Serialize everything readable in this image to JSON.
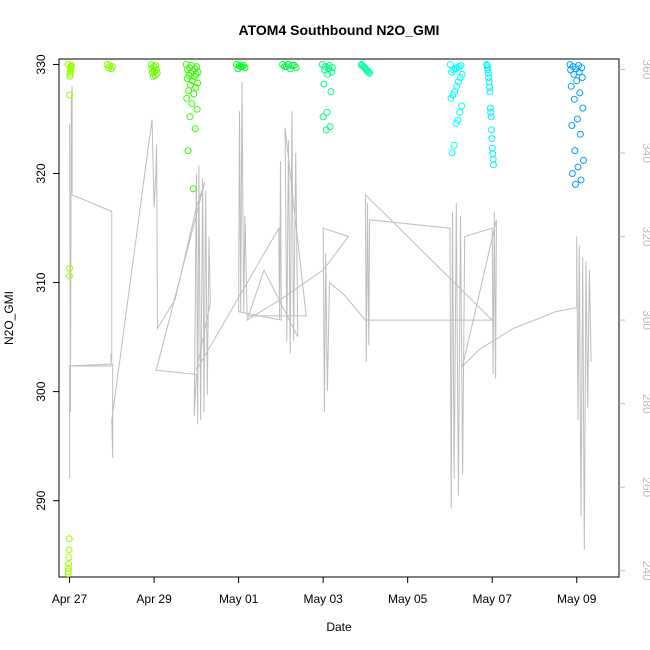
{
  "chart_data": {
    "type": "scatter",
    "title": "ATOM4 Southbound N2O_GMI",
    "xlabel": "Date",
    "ylabel": "N2O_GMI",
    "x_unit": "days since Apr 27",
    "xlim": [
      -0.25,
      13.0
    ],
    "ylim": [
      283.0,
      330.5
    ],
    "y2lim": [
      238.5,
      362.5
    ],
    "x_ticks": [
      {
        "value": 0,
        "label": "Apr 27"
      },
      {
        "value": 2,
        "label": "Apr 29"
      },
      {
        "value": 4,
        "label": "May 01"
      },
      {
        "value": 6,
        "label": "May 03"
      },
      {
        "value": 8,
        "label": "May 05"
      },
      {
        "value": 10,
        "label": "May 07"
      },
      {
        "value": 12,
        "label": "May 09"
      }
    ],
    "y_ticks": [
      290,
      300,
      310,
      320,
      330
    ],
    "y2_ticks": [
      240,
      260,
      280,
      300,
      320,
      340,
      360
    ],
    "grid": false,
    "legend": "none",
    "series": [
      {
        "kind": "points-primary-axis",
        "clusters": [
          {
            "x": 0.0,
            "dx": 0.04,
            "color": "#99ff00",
            "values": [
              330,
              329.9,
              329.8,
              329.7,
              329.6,
              329.5,
              329.3,
              329.1,
              328.9,
              327.2,
              311.3,
              310.6,
              286.5,
              285.5,
              284.8,
              284.2,
              283.8,
              283.5,
              283.3
            ]
          },
          {
            "x": 0.95,
            "dx": 0.06,
            "color": "#80ff00",
            "values": [
              330,
              329.9,
              329.8,
              329.7,
              329.6
            ]
          },
          {
            "x": 2.0,
            "dx": 0.07,
            "color": "#66ff00",
            "values": [
              330,
              329.9,
              329.8,
              329.6,
              329.5,
              329.4,
              329.3,
              329.2,
              329.0,
              328.9
            ]
          },
          {
            "x": 2.9,
            "dx": 0.14,
            "color": "#33ff00",
            "values": [
              330,
              329.9,
              329.8,
              329.7,
              329.6,
              329.5,
              329.4,
              329.3,
              329.2,
              329.1,
              329.0,
              328.9,
              328.7,
              328.5,
              328.3,
              328.1,
              327.9,
              327.6,
              327.3,
              326.9,
              326.4,
              325.9,
              325.2,
              324.1,
              322.1,
              318.6
            ]
          },
          {
            "x": 4.05,
            "dx": 0.1,
            "color": "#00ff1a",
            "values": [
              330,
              329.9,
              329.8,
              329.7,
              329.6,
              329.8,
              329.9
            ]
          },
          {
            "x": 5.2,
            "dx": 0.16,
            "color": "#00ff40",
            "values": [
              330,
              329.9,
              329.8,
              329.7,
              329.6,
              329.8,
              329.9,
              330
            ]
          },
          {
            "x": 6.1,
            "dx": 0.12,
            "color": "#00ff80",
            "values": [
              330,
              329.9,
              329.8,
              329.7,
              329.6,
              329.5,
              329.3,
              329.1,
              328.2,
              327.5,
              325.6,
              325.2,
              324.3,
              324.0
            ]
          },
          {
            "x": 7.0,
            "dx": 0.1,
            "color": "#00ffa0",
            "values": [
              330,
              329.9,
              329.8,
              329.7,
              329.6,
              329.5,
              329.4,
              329.3,
              329.2
            ]
          },
          {
            "x": 9.15,
            "dx": 0.14,
            "color": "#00ffff",
            "values": [
              330,
              329.9,
              329.8,
              329.7,
              329.6,
              329.5,
              329.3,
              329.1,
              328.8,
              328.4,
              328.0,
              327.5,
              327.2,
              326.9,
              326.2,
              325.6,
              324.9,
              324.6,
              322.6,
              321.9
            ]
          },
          {
            "x": 9.95,
            "dx": 0.08,
            "color": "#00f5ff",
            "values": [
              330,
              329.9,
              329.7,
              329.5,
              329.2,
              328.8,
              328.4,
              327.9,
              327.5,
              326.0,
              325.6,
              325.2,
              324.0,
              323.2,
              322.3,
              321.8,
              321.3,
              320.8
            ]
          },
          {
            "x": 12.0,
            "dx": 0.16,
            "color": "#00a0ff",
            "values": [
              330,
              329.9,
              329.8,
              329.7,
              329.6,
              329.5,
              329.3,
              329.1,
              328.8,
              328.5,
              328.0,
              327.4,
              326.8,
              326.0,
              325.0,
              324.4,
              323.6,
              322.1,
              321.2,
              320.6,
              320.0,
              319.4,
              319.0
            ]
          }
        ]
      },
      {
        "kind": "line-secondary-axis",
        "color": "#bebebe",
        "points": [
          [
            0.0,
            347
          ],
          [
            0.02,
            278
          ],
          [
            0.04,
            352
          ],
          [
            0.06,
            356
          ],
          [
            0.06,
            330
          ],
          [
            1.0,
            326
          ],
          [
            1.0,
            290
          ],
          [
            0.98,
            292
          ],
          [
            0.98,
            289
          ],
          [
            0.0,
            289
          ],
          [
            0.0,
            262
          ],
          [
            0.0,
            289
          ],
          [
            1.02,
            289.5
          ],
          [
            1.02,
            267
          ],
          [
            1.0,
            276
          ],
          [
            1.95,
            348
          ],
          [
            2.0,
            327
          ],
          [
            2.04,
            335
          ],
          [
            2.06,
            342
          ],
          [
            2.08,
            298
          ],
          [
            2.5,
            305
          ],
          [
            3.0,
            327
          ],
          [
            3.2,
            333
          ],
          [
            2.05,
            288
          ],
          [
            2.5,
            287.5
          ],
          [
            3.0,
            287
          ],
          [
            2.95,
            277
          ],
          [
            3.0,
            335
          ],
          [
            3.03,
            275
          ],
          [
            3.06,
            337
          ],
          [
            3.1,
            276
          ],
          [
            3.15,
            334
          ],
          [
            3.18,
            278
          ],
          [
            3.22,
            331
          ],
          [
            3.26,
            282
          ],
          [
            3.3,
            320
          ],
          [
            3.33,
            304
          ],
          [
            3.0,
            288
          ],
          [
            4.95,
            322
          ],
          [
            4.97,
            300
          ],
          [
            4.99,
            338
          ],
          [
            5.01,
            300
          ],
          [
            4.0,
            302
          ],
          [
            4.02,
            350
          ],
          [
            4.05,
            302
          ],
          [
            4.08,
            357
          ],
          [
            4.12,
            302
          ],
          [
            4.15,
            325
          ],
          [
            4.2,
            301
          ],
          [
            5.0,
            301
          ],
          [
            5.6,
            301
          ],
          [
            5.1,
            346
          ],
          [
            5.14,
            295
          ],
          [
            5.18,
            343
          ],
          [
            5.22,
            292
          ],
          [
            5.26,
            350
          ],
          [
            5.3,
            295
          ],
          [
            5.35,
            340
          ],
          [
            5.4,
            296
          ],
          [
            4.6,
            312
          ],
          [
            4.2,
            300
          ],
          [
            5.0,
            305
          ],
          [
            6.0,
            312
          ],
          [
            6.6,
            320
          ],
          [
            6.0,
            322
          ],
          [
            6.03,
            278
          ],
          [
            6.06,
            316
          ],
          [
            6.1,
            283
          ],
          [
            6.15,
            309
          ],
          [
            6.5,
            306
          ],
          [
            7.0,
            300
          ],
          [
            8.0,
            300
          ],
          [
            9.5,
            300
          ],
          [
            10.0,
            300
          ],
          [
            7.0,
            330
          ],
          [
            7.02,
            290
          ],
          [
            7.05,
            328
          ],
          [
            7.08,
            294
          ],
          [
            7.1,
            324
          ],
          [
            9.0,
            322
          ],
          [
            9.03,
            255
          ],
          [
            9.06,
            326
          ],
          [
            9.1,
            262
          ],
          [
            9.15,
            328
          ],
          [
            9.2,
            258
          ],
          [
            9.25,
            325
          ],
          [
            9.3,
            263
          ],
          [
            9.35,
            320
          ],
          [
            10.0,
            322
          ],
          [
            10.02,
            287
          ],
          [
            10.05,
            326
          ],
          [
            10.08,
            286
          ],
          [
            10.1,
            324
          ],
          [
            9.3,
            289
          ],
          [
            9.7,
            293
          ],
          [
            10.5,
            298
          ],
          [
            11.0,
            300
          ],
          [
            11.5,
            302
          ],
          [
            12.0,
            303
          ],
          [
            12.0,
            320
          ],
          [
            12.03,
            276
          ],
          [
            12.06,
            318
          ],
          [
            12.1,
            253
          ],
          [
            12.14,
            315
          ],
          [
            12.18,
            245
          ],
          [
            12.22,
            314
          ],
          [
            12.26,
            279
          ],
          [
            12.3,
            312
          ],
          [
            12.34,
            290
          ]
        ]
      }
    ]
  }
}
